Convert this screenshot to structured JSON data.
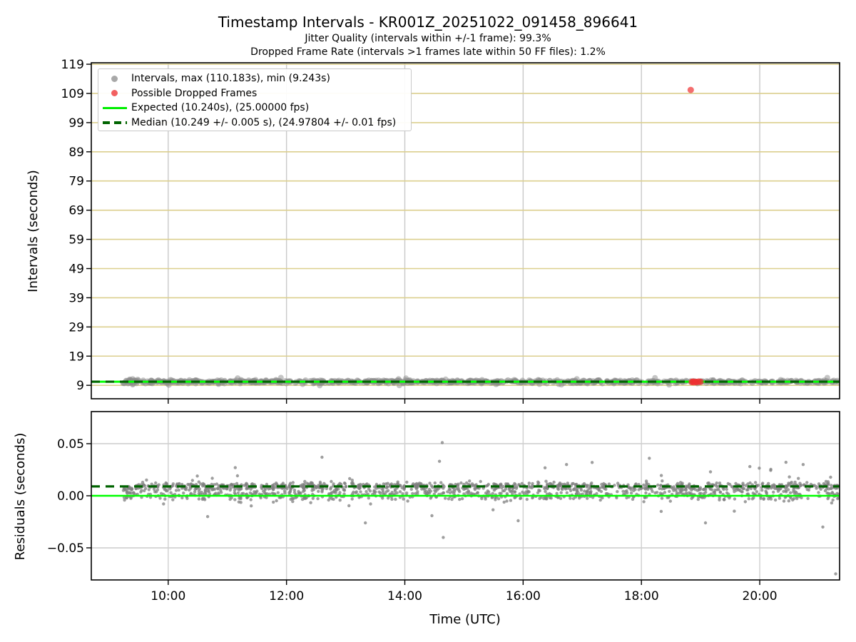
{
  "figure": {
    "title": "Timestamp Intervals - KR001Z_20251022_091458_896641",
    "subtitle_line1": "Jitter Quality (intervals within +/-1 frame): 99.3%",
    "subtitle_line2": "Dropped Frame Rate (intervals >1 frames late within 50 FF files): 1.2%",
    "background_color": "#ffffff"
  },
  "legend": {
    "items": [
      {
        "marker": "dot",
        "color": "#a8a8a8",
        "label": "Intervals, max (110.183s), min (9.243s)"
      },
      {
        "marker": "dot",
        "color": "#f26060",
        "label": "Possible Dropped Frames"
      },
      {
        "marker": "line",
        "color": "#00ee00",
        "label": "Expected (10.240s), (25.00000 fps)"
      },
      {
        "marker": "dashed-line",
        "color": "#006400",
        "label": "Median (10.249 +/- 0.005 s), (24.97804 +/- 0.01 fps)"
      }
    ]
  },
  "x_axis": {
    "label": "Time (UTC)",
    "xlim_minutes": [
      522,
      1281
    ],
    "ticks": [
      {
        "minutes": 600,
        "label": "10:00"
      },
      {
        "minutes": 720,
        "label": "12:00"
      },
      {
        "minutes": 840,
        "label": "14:00"
      },
      {
        "minutes": 960,
        "label": "16:00"
      },
      {
        "minutes": 1080,
        "label": "18:00"
      },
      {
        "minutes": 1200,
        "label": "20:00"
      }
    ]
  },
  "chart_data": [
    {
      "type": "scatter",
      "name": "timestamp-intervals",
      "ylabel": "Intervals (seconds)",
      "ylim": [
        4.4,
        119.5
      ],
      "yticks": [
        9,
        19,
        29,
        39,
        49,
        59,
        69,
        79,
        89,
        99,
        109,
        119
      ],
      "grid": {
        "horizontal_color": "#dccf8e",
        "vertical_color": "#c9c9c9"
      },
      "seed": 1337,
      "series": [
        {
          "name": "Intervals",
          "color": "#8c8c8c",
          "opacity": 0.5,
          "marker_radius": 4,
          "stats": {
            "max_s": 110.183,
            "min_s": 9.243,
            "median_s": 10.249,
            "median_err_s": 0.005,
            "fps": 24.97804,
            "fps_err": 0.01
          },
          "band": {
            "time_start": "09:14",
            "time_end": "21:20",
            "center": 10.25,
            "sigma": 0.28,
            "count": 850
          },
          "start_cluster": {
            "time_center": "09:24",
            "spread_minutes": 5,
            "value_min": 9.243,
            "value_max": 11.2,
            "count": 16
          },
          "minor_outliers": {
            "count": 22,
            "deviation_min": 0.45,
            "deviation_max": 1.4
          }
        },
        {
          "name": "Possible Dropped Frames",
          "color": "#f03030",
          "opacity": 0.7,
          "marker_radius": 4.5,
          "points": [
            {
              "time": "18:50",
              "value": 110.183
            },
            {
              "time": "18:51",
              "value": 10.12
            },
            {
              "time": "18:52",
              "value": 10.28
            },
            {
              "time": "18:53",
              "value": 10.05
            },
            {
              "time": "18:55",
              "value": 10.22
            },
            {
              "time": "18:56",
              "value": 10.1
            },
            {
              "time": "18:58",
              "value": 10.3
            },
            {
              "time": "19:00",
              "value": 10.18
            }
          ]
        }
      ],
      "lines": [
        {
          "name": "Expected",
          "value": 10.24,
          "color": "#00ff00",
          "style": "solid",
          "width": 3
        },
        {
          "name": "Median",
          "value": 10.249,
          "color": "#006400",
          "style": "dashed",
          "width": 3.2
        }
      ]
    },
    {
      "type": "scatter",
      "name": "residuals",
      "ylabel": "Residuals (seconds)",
      "xlabel": "Time (UTC)",
      "ylim": [
        -0.0808,
        0.0808
      ],
      "yticks": [
        {
          "value": 0.05,
          "label": "0.05"
        },
        {
          "value": 0.0,
          "label": "0.00"
        },
        {
          "value": -0.05,
          "label": "−0.05"
        }
      ],
      "grid": {
        "horizontal_color": "#cfcfcf",
        "vertical_color": "#cfcfcf"
      },
      "seed": 2024,
      "series": [
        {
          "name": "Residuals",
          "color": "#7f7f7f",
          "opacity": 0.75,
          "marker_radius": 2.2,
          "cloud": {
            "time_start": "09:14",
            "time_end": "21:20",
            "count": 1600,
            "mixture": [
              {
                "weight": 0.5,
                "mean": 0.009,
                "sigma": 0.0018
              },
              {
                "weight": 0.3,
                "mean": 0.003,
                "sigma": 0.003
              },
              {
                "weight": 0.13,
                "mean": -0.0012,
                "sigma": 0.0018
              },
              {
                "weight": 0.07,
                "mean": 0.006,
                "sigma": 0.011
              }
            ],
            "clip": [
              -0.033,
              0.038
            ]
          },
          "outliers": [
            {
              "time": "10:40",
              "value": -0.02
            },
            {
              "time": "11:08",
              "value": 0.027
            },
            {
              "time": "12:36",
              "value": 0.037
            },
            {
              "time": "13:20",
              "value": -0.026
            },
            {
              "time": "14:38",
              "value": 0.051
            },
            {
              "time": "14:39",
              "value": -0.04
            },
            {
              "time": "15:55",
              "value": -0.024
            },
            {
              "time": "16:44",
              "value": 0.03
            },
            {
              "time": "17:10",
              "value": 0.032
            },
            {
              "time": "18:08",
              "value": 0.036
            },
            {
              "time": "19:05",
              "value": -0.026
            },
            {
              "time": "19:50",
              "value": 0.028
            },
            {
              "time": "20:44",
              "value": 0.03
            },
            {
              "time": "21:04",
              "value": -0.03
            },
            {
              "time": "21:17",
              "value": -0.075
            }
          ]
        }
      ],
      "lines": [
        {
          "name": "Expected",
          "value": 0.0,
          "color": "#00ff00",
          "style": "solid",
          "width": 2.6
        },
        {
          "name": "Median",
          "value": 0.009,
          "color": "#006400",
          "style": "dashed",
          "width": 3.2
        }
      ]
    }
  ]
}
